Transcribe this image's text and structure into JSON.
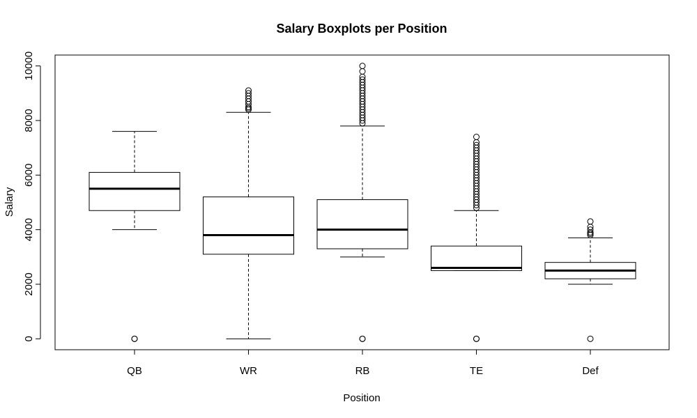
{
  "chart_data": {
    "type": "boxplot",
    "title": "Salary Boxplots per Position",
    "xlabel": "Position",
    "ylabel": "Salary",
    "ylim": [
      -400,
      10400
    ],
    "yticks": [
      0,
      2000,
      4000,
      6000,
      8000,
      10000
    ],
    "categories": [
      "QB",
      "WR",
      "RB",
      "TE",
      "Def"
    ],
    "boxes": [
      {
        "name": "QB",
        "whisker_low": 4000,
        "q1": 4700,
        "median": 5500,
        "q3": 6100,
        "whisker_high": 7600,
        "outliers": [
          0,
          0
        ]
      },
      {
        "name": "WR",
        "whisker_low": 0,
        "q1": 3100,
        "median": 3800,
        "q3": 5200,
        "whisker_high": 8300,
        "outliers": [
          8400,
          8450,
          8500,
          8600,
          8700,
          8800,
          8900,
          9000,
          9100
        ]
      },
      {
        "name": "RB",
        "whisker_low": 3000,
        "q1": 3300,
        "median": 4000,
        "q3": 5100,
        "whisker_high": 7800,
        "outliers": [
          0,
          0,
          7900,
          8000,
          8100,
          8200,
          8300,
          8400,
          8500,
          8600,
          8700,
          8800,
          8900,
          9000,
          9100,
          9200,
          9300,
          9400,
          9500,
          9600,
          9800,
          10000
        ]
      },
      {
        "name": "TE",
        "whisker_low": 2500,
        "q1": 2500,
        "median": 2600,
        "q3": 3400,
        "whisker_high": 4700,
        "outliers": [
          0,
          0,
          4800,
          4900,
          5000,
          5100,
          5200,
          5300,
          5400,
          5500,
          5600,
          5700,
          5800,
          5900,
          6000,
          6100,
          6200,
          6300,
          6400,
          6500,
          6600,
          6700,
          6800,
          6900,
          7000,
          7100,
          7200,
          7400
        ]
      },
      {
        "name": "Def",
        "whisker_low": 2000,
        "q1": 2200,
        "median": 2500,
        "q3": 2800,
        "whisker_high": 3700,
        "outliers": [
          0,
          3800,
          3850,
          3900,
          4000,
          4100,
          4300
        ]
      }
    ],
    "grid": false,
    "legend": "none"
  }
}
